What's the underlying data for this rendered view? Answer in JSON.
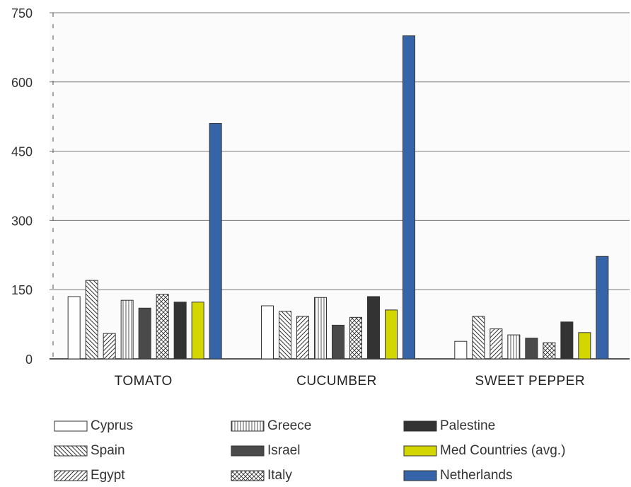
{
  "chart_data": {
    "type": "bar",
    "categories": [
      "TOMATO",
      "CUCUMBER",
      "SWEET PEPPER"
    ],
    "ylim": [
      0,
      750
    ],
    "yticks": [
      0,
      150,
      300,
      450,
      600,
      750
    ],
    "grid": true,
    "legend_position": "bottom",
    "series": [
      {
        "name": "Cyprus",
        "values": [
          135,
          115,
          38
        ],
        "color": "#ffffff",
        "pattern": "empty"
      },
      {
        "name": "Spain",
        "values": [
          170,
          103,
          92
        ],
        "color": "#ffffff",
        "pattern": "backslash-hatch"
      },
      {
        "name": "Egypt",
        "values": [
          55,
          92,
          65
        ],
        "color": "#ffffff",
        "pattern": "forward-hatch"
      },
      {
        "name": "Greece",
        "values": [
          127,
          133,
          52
        ],
        "color": "#ffffff",
        "pattern": "vertical-lines"
      },
      {
        "name": "Israel",
        "values": [
          110,
          73,
          45
        ],
        "color": "#4a4a4a",
        "pattern": "solid"
      },
      {
        "name": "Italy",
        "values": [
          140,
          90,
          35
        ],
        "color": "#ffffff",
        "pattern": "crosshatch"
      },
      {
        "name": "Palestine",
        "values": [
          123,
          135,
          80
        ],
        "color": "#333333",
        "pattern": "solid"
      },
      {
        "name": "Med Countries (avg.)",
        "values": [
          123,
          106,
          57
        ],
        "color": "#d4d600",
        "pattern": "solid"
      },
      {
        "name": "Netherlands",
        "values": [
          510,
          700,
          222
        ],
        "color": "#3564a8",
        "pattern": "solid"
      }
    ]
  }
}
